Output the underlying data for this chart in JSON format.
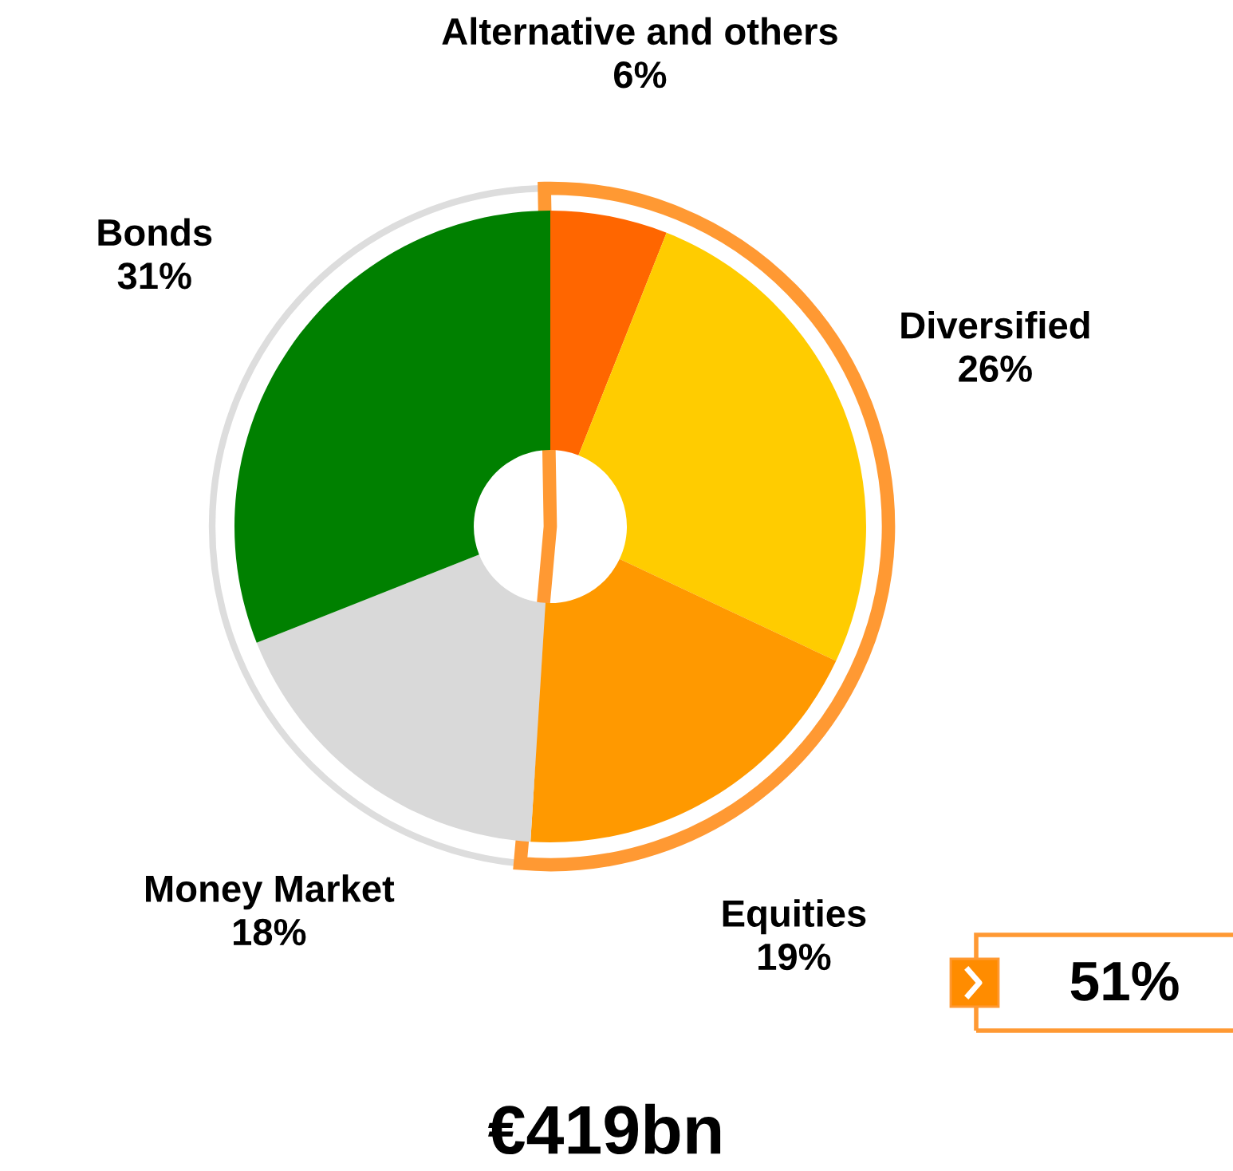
{
  "chart_data": {
    "type": "donut",
    "categories": [
      "Alternative and others",
      "Diversified",
      "Equities",
      "Money Market",
      "Bonds"
    ],
    "values": [
      6,
      26,
      19,
      18,
      31
    ],
    "value_labels": [
      "6%",
      "26%",
      "19%",
      "18%",
      "31%"
    ],
    "colors": [
      "#ff6600",
      "#ffcc00",
      "#ff9900",
      "#d9d9d9",
      "#008000"
    ],
    "annotations": [
      "51%",
      "€419bn"
    ]
  }
}
